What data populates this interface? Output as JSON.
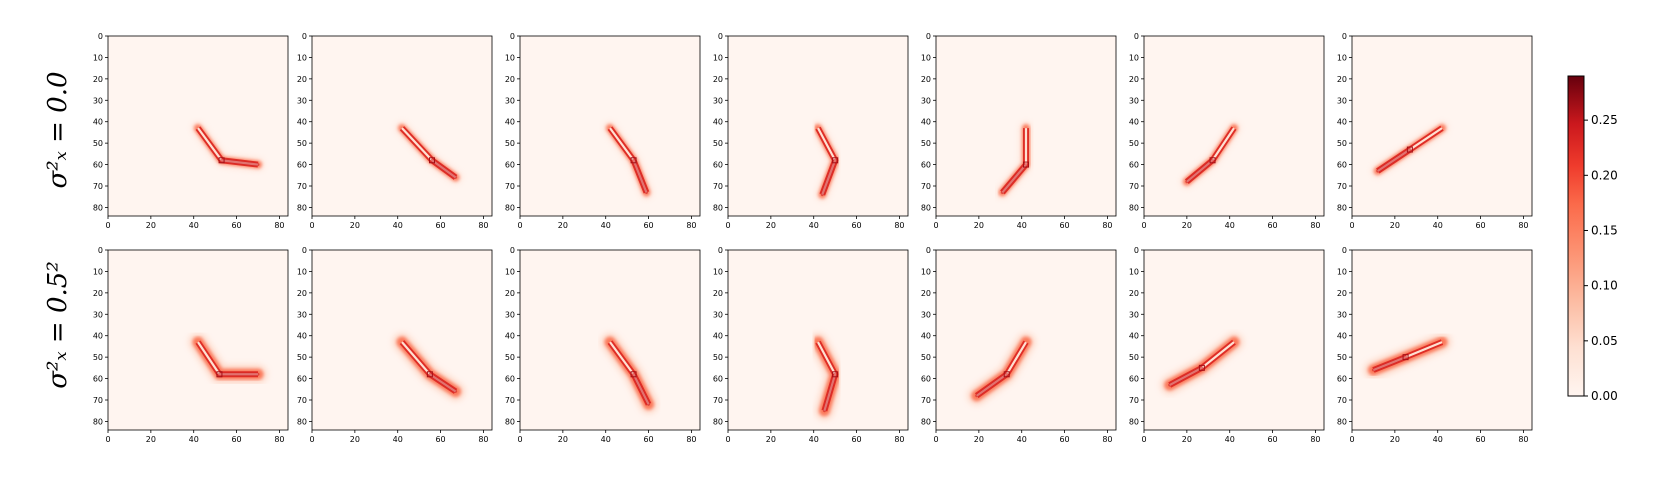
{
  "chart_data": {
    "type": "heatmap",
    "grid": "off",
    "colormap": "Reds",
    "row_labels": [
      "σ²ₓ = 0.0",
      "σ²ₓ = 0.5²"
    ],
    "axes": {
      "x_ticks": [
        "0",
        "20",
        "40",
        "60",
        "80"
      ],
      "y_ticks": [
        "0",
        "10",
        "20",
        "30",
        "40",
        "50",
        "60",
        "70",
        "80"
      ],
      "xlim": [
        0,
        84
      ],
      "ylim": [
        84,
        0
      ]
    },
    "colorbar": {
      "ticks": [
        "0.00",
        "0.05",
        "0.10",
        "0.15",
        "0.20",
        "0.25"
      ],
      "range": [
        0,
        0.29
      ],
      "placement": "right"
    },
    "panels": [
      {
        "row": 0,
        "col": 0,
        "arm": [
          [
            42,
            43
          ],
          [
            53,
            58
          ],
          [
            70,
            60
          ]
        ]
      },
      {
        "row": 0,
        "col": 1,
        "arm": [
          [
            42,
            43
          ],
          [
            56,
            58
          ],
          [
            67,
            66
          ]
        ]
      },
      {
        "row": 0,
        "col": 2,
        "arm": [
          [
            42,
            43
          ],
          [
            53,
            58
          ],
          [
            59,
            73
          ]
        ]
      },
      {
        "row": 0,
        "col": 3,
        "arm": [
          [
            42,
            43
          ],
          [
            50,
            58
          ],
          [
            44,
            74
          ]
        ]
      },
      {
        "row": 0,
        "col": 4,
        "arm": [
          [
            42,
            43
          ],
          [
            42,
            60
          ],
          [
            31,
            73
          ]
        ]
      },
      {
        "row": 0,
        "col": 5,
        "arm": [
          [
            42,
            43
          ],
          [
            32,
            58
          ],
          [
            20,
            68
          ]
        ]
      },
      {
        "row": 0,
        "col": 6,
        "arm": [
          [
            42,
            43
          ],
          [
            27,
            53
          ],
          [
            12,
            63
          ]
        ]
      },
      {
        "row": 1,
        "col": 0,
        "arm": [
          [
            42,
            43
          ],
          [
            52,
            58
          ],
          [
            70,
            58
          ]
        ]
      },
      {
        "row": 1,
        "col": 1,
        "arm": [
          [
            42,
            43
          ],
          [
            55,
            58
          ],
          [
            67,
            66
          ]
        ]
      },
      {
        "row": 1,
        "col": 2,
        "arm": [
          [
            42,
            43
          ],
          [
            53,
            58
          ],
          [
            60,
            72
          ]
        ]
      },
      {
        "row": 1,
        "col": 3,
        "arm": [
          [
            42,
            43
          ],
          [
            50,
            58
          ],
          [
            45,
            75
          ]
        ]
      },
      {
        "row": 1,
        "col": 4,
        "arm": [
          [
            42,
            43
          ],
          [
            33,
            58
          ],
          [
            19,
            68
          ]
        ]
      },
      {
        "row": 1,
        "col": 5,
        "arm": [
          [
            42,
            43
          ],
          [
            27,
            55
          ],
          [
            12,
            63
          ]
        ]
      },
      {
        "row": 1,
        "col": 6,
        "arm": [
          [
            42,
            43
          ],
          [
            25,
            50
          ],
          [
            10,
            56
          ]
        ]
      }
    ]
  }
}
